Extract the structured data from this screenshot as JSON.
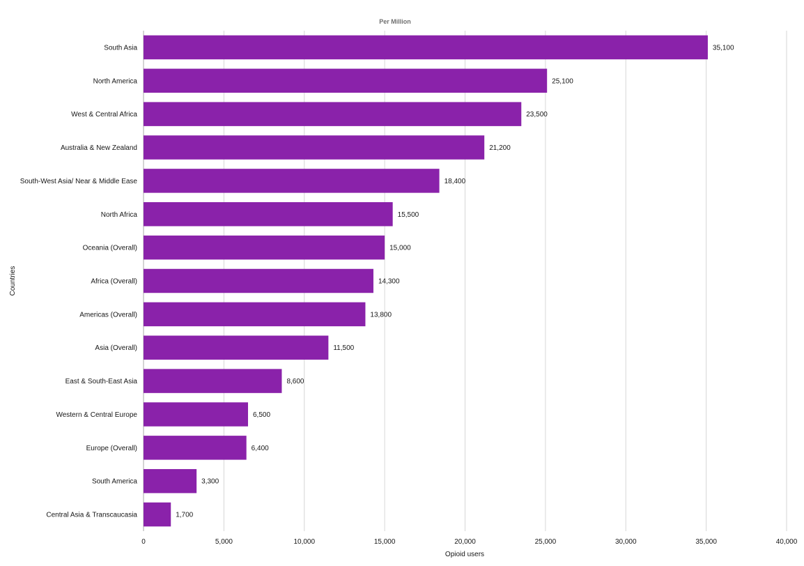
{
  "chart_data": {
    "type": "bar",
    "orientation": "horizontal",
    "title": "Per Million",
    "xlabel": "Opioid users",
    "ylabel": "Countries",
    "xlim": [
      0,
      40000
    ],
    "x_ticks": [
      "0",
      "5,000",
      "10,000",
      "15,000",
      "20,000",
      "25,000",
      "30,000",
      "35,000",
      "40,000"
    ],
    "x_tick_values": [
      0,
      5000,
      10000,
      15000,
      20000,
      25000,
      30000,
      35000,
      40000
    ],
    "grid": true,
    "bar_color": "#8a22aa",
    "categories": [
      "South Asia",
      "North America",
      "West & Central Africa",
      "Australia & New Zealand",
      "South-West Asia/ Near & Middle Ease",
      "North Africa",
      "Oceania (Overall)",
      "Africa (Overall)",
      "Americas (Overall)",
      "Asia (Overall)",
      "East & South-East Asia",
      "Western & Central Europe",
      "Europe (Overall)",
      "South America",
      "Central Asia & Transcaucasia"
    ],
    "values": [
      35100,
      25100,
      23500,
      21200,
      18400,
      15500,
      15000,
      14300,
      13800,
      11500,
      8600,
      6500,
      6400,
      3300,
      1700
    ],
    "value_labels": [
      "35,100",
      "25,100",
      "23,500",
      "21,200",
      "18,400",
      "15,500",
      "15,000",
      "14,300",
      "13,800",
      "11,500",
      "8,600",
      "6,500",
      "6,400",
      "3,300",
      "1,700"
    ]
  }
}
